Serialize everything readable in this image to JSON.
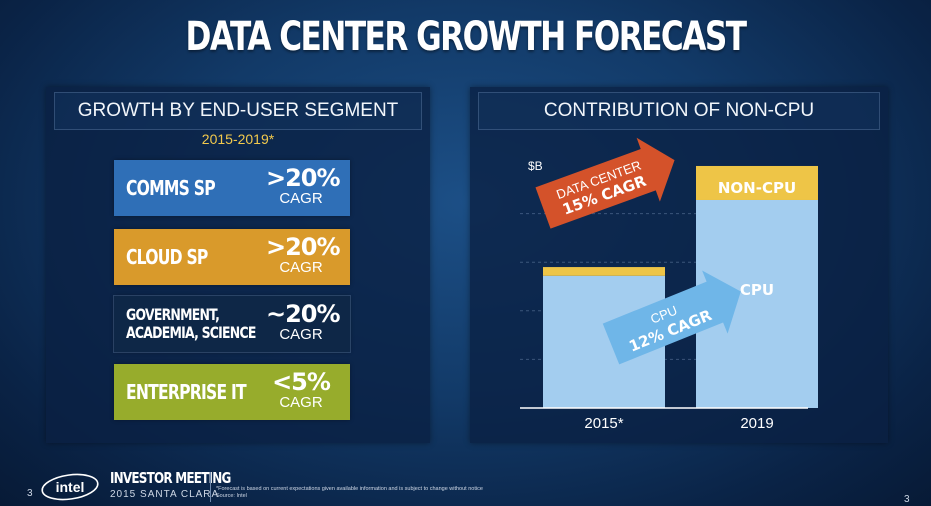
{
  "title": "DATA CENTER GROWTH FORECAST",
  "left_panel": {
    "heading": "GROWTH BY END-USER SEGMENT",
    "years": "2015-2019*",
    "segments": [
      {
        "name": "COMMS SP",
        "pct": ">20%",
        "cagr": "CAGR",
        "color": "#2f6fb7"
      },
      {
        "name": "CLOUD SP",
        "pct": ">20%",
        "cagr": "CAGR",
        "color": "#d99a2b"
      },
      {
        "name": "GOVERNMENT,\nACADEMIA, SCIENCE",
        "pct": "~20%",
        "cagr": "CAGR",
        "color": "#0e2747"
      },
      {
        "name": "ENTERPRISE IT",
        "pct": "<5%",
        "cagr": "CAGR",
        "color": "#97ac2c"
      }
    ]
  },
  "right_panel": {
    "heading": "CONTRIBUTION OF NON-CPU"
  },
  "chart_data": {
    "type": "bar",
    "stacked": true,
    "categories": [
      "2015*",
      "2019"
    ],
    "ylabel": "$B",
    "grid": true,
    "series": [
      {
        "name": "CPU",
        "values": [
          1.36,
          2.14
        ],
        "color": "#a3cdef"
      },
      {
        "name": "NON-CPU",
        "values": [
          0.09,
          0.35
        ],
        "color": "#eec547"
      }
    ],
    "annotations": [
      {
        "text_line1": "DATA CENTER",
        "text_line2": "15% CAGR",
        "color": "#d4522a"
      },
      {
        "text_line1": "CPU",
        "text_line2": "12% CAGR",
        "color": "#6fb6e8"
      }
    ],
    "bar_labels": [
      "NON-CPU",
      "CPU"
    ]
  },
  "footer": {
    "page_left": "3",
    "page_right": "3",
    "logo": "intel",
    "event_title": "INVESTOR MEETING",
    "event_sub": "2015 SANTA CLARA",
    "note_line1": "*Forecast is based on current expectations given available information and is subject to change without notice",
    "note_line2": "Source: Intel"
  }
}
